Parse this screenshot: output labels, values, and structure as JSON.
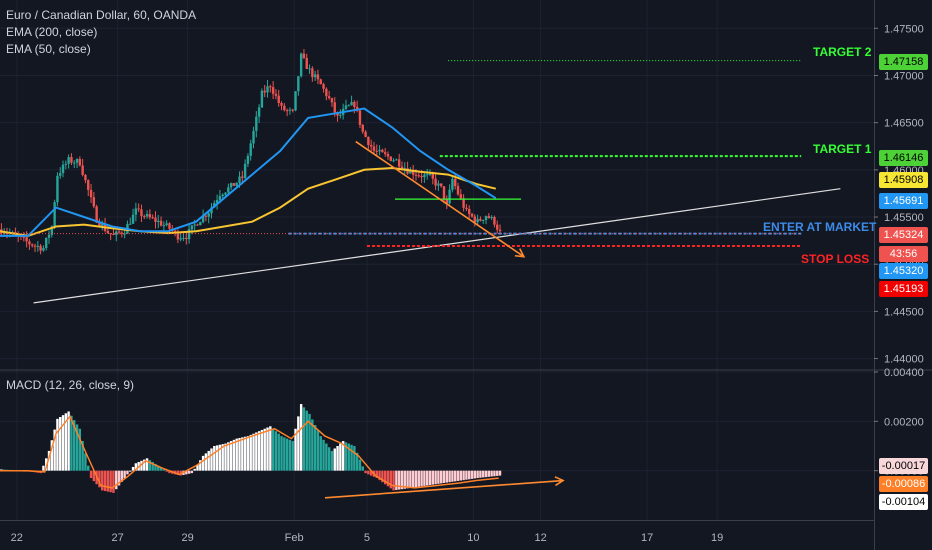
{
  "header": {
    "symbol": "Euro / Canadian Dollar, 60, OANDA",
    "ema200": "EMA (200, close)",
    "ema50": "EMA (50, close)",
    "macd": "MACD (12, 26, close, 9)"
  },
  "annotations": {
    "target2": "TARGET 2",
    "target1": "TARGET 1",
    "enter": "ENTER AT MARKET",
    "stop": "STOP LOSS"
  },
  "price_tags": [
    {
      "label": "1.47158",
      "value": 1.47158,
      "bg": "#4cd137",
      "fg": "#000000"
    },
    {
      "label": "1.46146",
      "value": 1.46146,
      "bg": "#4cd137",
      "fg": "#000000"
    },
    {
      "label": "1.45908",
      "value": 1.45908,
      "bg": "#f7e733",
      "fg": "#000000"
    },
    {
      "label": "1.45691",
      "value": 1.45691,
      "bg": "#2196f3",
      "fg": "#ffffff"
    },
    {
      "label": "1.45324",
      "value": 1.45324,
      "bg": "#ef5350",
      "fg": "#ffffff"
    },
    {
      "label": "43:56",
      "value": 1.4525,
      "bg": "#ef5350",
      "fg": "#ffffff"
    },
    {
      "label": "1.45320",
      "value": 1.4532,
      "bg": "#2196f3",
      "fg": "#ffffff"
    },
    {
      "label": "1.45193",
      "value": 1.45193,
      "bg": "#f20000",
      "fg": "#ffffff"
    }
  ],
  "macd_tags": [
    {
      "label": "-0.00017",
      "value": -0.00017,
      "bg": "#f8d7da",
      "fg": "#000000"
    },
    {
      "label": "-0.00086",
      "value": -0.00086,
      "bg": "#ff7f27",
      "fg": "#ffffff"
    },
    {
      "label": "-0.00104",
      "value": -0.00104,
      "bg": "#ffffff",
      "fg": "#000000"
    }
  ],
  "colors": {
    "background": "#131722",
    "grid": "#1e2230",
    "up": "#26a69a",
    "down": "#ef5350",
    "ema50": "#2196f3",
    "ema200": "#f7c531",
    "macd_line": "#ffffff",
    "signal_line": "#ff7f27",
    "target": "#33ff33",
    "stop": "#ff2222",
    "enter": "#3d8be8",
    "arrow": "#ff8a30"
  },
  "chart_data": {
    "type": "candlestick",
    "main": {
      "ylim": [
        1.439,
        1.478
      ],
      "yticks": [
        1.44,
        1.445,
        1.45,
        1.455,
        1.46,
        1.465,
        1.47,
        1.475
      ],
      "ytick_labels": [
        "1.44000",
        "1.44500",
        "1.45000",
        "1.45500",
        "1.46000",
        "1.46500",
        "1.47000",
        "1.47500"
      ],
      "price_path": [
        [
          0,
          1.4537
        ],
        [
          5,
          1.453
        ],
        [
          10,
          1.4522
        ],
        [
          15,
          1.4517
        ],
        [
          18,
          1.454
        ],
        [
          20,
          1.4595
        ],
        [
          24,
          1.461
        ],
        [
          28,
          1.4608
        ],
        [
          30,
          1.4588
        ],
        [
          34,
          1.4548
        ],
        [
          38,
          1.4534
        ],
        [
          40,
          1.453
        ],
        [
          44,
          1.4536
        ],
        [
          48,
          1.4556
        ],
        [
          52,
          1.455
        ],
        [
          56,
          1.4545
        ],
        [
          60,
          1.4538
        ],
        [
          63,
          1.453
        ],
        [
          66,
          1.453
        ],
        [
          70,
          1.4545
        ],
        [
          74,
          1.4556
        ],
        [
          78,
          1.4575
        ],
        [
          82,
          1.4582
        ],
        [
          86,
          1.4592
        ],
        [
          90,
          1.464
        ],
        [
          93,
          1.468
        ],
        [
          96,
          1.469
        ],
        [
          100,
          1.4665
        ],
        [
          104,
          1.466
        ],
        [
          107,
          1.472
        ],
        [
          110,
          1.4705
        ],
        [
          114,
          1.469
        ],
        [
          117,
          1.4675
        ],
        [
          120,
          1.4655
        ],
        [
          123,
          1.4665
        ],
        [
          126,
          1.467
        ],
        [
          129,
          1.464
        ],
        [
          133,
          1.462
        ],
        [
          137,
          1.4615
        ],
        [
          141,
          1.461
        ],
        [
          145,
          1.46
        ],
        [
          149,
          1.4595
        ],
        [
          153,
          1.4592
        ],
        [
          157,
          1.458
        ],
        [
          159,
          1.4562
        ],
        [
          161,
          1.459
        ],
        [
          163,
          1.4575
        ],
        [
          166,
          1.4555
        ],
        [
          170,
          1.4545
        ],
        [
          173,
          1.4552
        ],
        [
          176,
          1.4545
        ],
        [
          178,
          1.4533
        ]
      ],
      "ema50_path": [
        [
          0,
          1.453
        ],
        [
          10,
          1.453
        ],
        [
          20,
          1.456
        ],
        [
          30,
          1.455
        ],
        [
          40,
          1.454
        ],
        [
          50,
          1.4535
        ],
        [
          60,
          1.4535
        ],
        [
          70,
          1.4545
        ],
        [
          80,
          1.457
        ],
        [
          90,
          1.4595
        ],
        [
          100,
          1.462
        ],
        [
          110,
          1.4655
        ],
        [
          120,
          1.466
        ],
        [
          130,
          1.4665
        ],
        [
          140,
          1.4645
        ],
        [
          150,
          1.462
        ],
        [
          160,
          1.46
        ],
        [
          170,
          1.4583
        ],
        [
          177,
          1.457
        ]
      ],
      "ema200_path": [
        [
          0,
          1.4535
        ],
        [
          10,
          1.453
        ],
        [
          20,
          1.454
        ],
        [
          30,
          1.4542
        ],
        [
          40,
          1.4538
        ],
        [
          50,
          1.4535
        ],
        [
          60,
          1.4533
        ],
        [
          70,
          1.4535
        ],
        [
          80,
          1.454
        ],
        [
          90,
          1.4545
        ],
        [
          100,
          1.456
        ],
        [
          110,
          1.458
        ],
        [
          120,
          1.459
        ],
        [
          130,
          1.46
        ],
        [
          140,
          1.4602
        ],
        [
          150,
          1.4598
        ],
        [
          160,
          1.4595
        ],
        [
          170,
          1.4585
        ],
        [
          177,
          1.458
        ]
      ],
      "lines": [
        {
          "kind": "trendline",
          "from": [
            12,
            1.4459
          ],
          "to": [
            300,
            1.458
          ],
          "color": "#e0e0e0"
        },
        {
          "kind": "target2",
          "from": [
            160,
            1.47158
          ],
          "to": [
            286,
            1.47158
          ],
          "color": "#33ff33"
        },
        {
          "kind": "target1",
          "from": [
            157,
            1.46146
          ],
          "to": [
            286,
            1.46146
          ],
          "color": "#33ff33"
        },
        {
          "kind": "enter",
          "from": [
            103,
            1.45324
          ],
          "to": [
            286,
            1.45324
          ],
          "color": "#3d8be8"
        },
        {
          "kind": "stop",
          "from": [
            131,
            1.45193
          ],
          "to": [
            286,
            1.45193
          ],
          "color": "#ff2222"
        },
        {
          "kind": "current",
          "from": [
            0,
            1.45324
          ],
          "to": [
            286,
            1.45324
          ],
          "color": "#ef5350"
        },
        {
          "kind": "level",
          "from": [
            141,
            1.4569
          ],
          "to": [
            186,
            1.4569
          ],
          "color": "#33ff33"
        },
        {
          "kind": "arrow",
          "from": [
            127,
            1.463
          ],
          "to": [
            187,
            1.4508
          ],
          "color": "#ff8a30"
        }
      ]
    },
    "macd": {
      "ylim": [
        -0.002,
        0.004
      ],
      "yticks": [
        0.0,
        0.002,
        0.004
      ],
      "ytick_labels": [
        "0.00000",
        "0.00200",
        "0.00400"
      ],
      "macd_path": [
        [
          0,
          5e-05
        ],
        [
          8,
          0.0
        ],
        [
          14,
          -0.0001
        ],
        [
          17,
          0.0008
        ],
        [
          20,
          0.0021
        ],
        [
          24,
          0.0024
        ],
        [
          28,
          0.0017
        ],
        [
          32,
          -0.0003
        ],
        [
          36,
          -0.0008
        ],
        [
          40,
          -0.0009
        ],
        [
          44,
          -0.0003
        ],
        [
          48,
          0.0003
        ],
        [
          52,
          0.0005
        ],
        [
          56,
          0.0002
        ],
        [
          60,
          -0.0001
        ],
        [
          64,
          -0.0002
        ],
        [
          68,
          -0.0001
        ],
        [
          72,
          0.0006
        ],
        [
          76,
          0.001
        ],
        [
          80,
          0.0011
        ],
        [
          84,
          0.0013
        ],
        [
          88,
          0.0014
        ],
        [
          92,
          0.0016
        ],
        [
          96,
          0.0018
        ],
        [
          100,
          0.0014
        ],
        [
          104,
          0.0012
        ],
        [
          107,
          0.0027
        ],
        [
          110,
          0.0023
        ],
        [
          114,
          0.0014
        ],
        [
          118,
          0.0008
        ],
        [
          122,
          0.0012
        ],
        [
          126,
          0.001
        ],
        [
          130,
          -0.0001
        ],
        [
          134,
          -0.0003
        ],
        [
          140,
          -0.0008
        ],
        [
          146,
          -0.0007
        ],
        [
          152,
          -0.0006
        ],
        [
          158,
          -0.0005
        ],
        [
          164,
          -0.0004
        ],
        [
          170,
          -0.0003
        ],
        [
          178,
          -0.0002
        ]
      ],
      "signal_path": [
        [
          0,
          0.0
        ],
        [
          10,
          0.0
        ],
        [
          16,
          -5e-05
        ],
        [
          20,
          0.0015
        ],
        [
          25,
          0.0022
        ],
        [
          30,
          0.0009
        ],
        [
          36,
          -0.0006
        ],
        [
          40,
          -0.0007
        ],
        [
          46,
          -0.0002
        ],
        [
          52,
          0.0004
        ],
        [
          58,
          0.0001
        ],
        [
          64,
          -0.00015
        ],
        [
          70,
          0.0002
        ],
        [
          80,
          0.001
        ],
        [
          90,
          0.0014
        ],
        [
          98,
          0.0017
        ],
        [
          104,
          0.0013
        ],
        [
          110,
          0.002
        ],
        [
          116,
          0.0014
        ],
        [
          122,
          0.0011
        ],
        [
          128,
          0.0006
        ],
        [
          134,
          -0.0002
        ],
        [
          140,
          -0.0006
        ],
        [
          148,
          -0.0007
        ],
        [
          156,
          -0.0006
        ],
        [
          164,
          -0.0005
        ],
        [
          170,
          -0.0004
        ],
        [
          178,
          -0.0003
        ]
      ],
      "arrow": {
        "from": [
          116,
          -0.0011
        ],
        "to": [
          201,
          -0.0004
        ],
        "color": "#ff8a30"
      }
    },
    "x_axis": {
      "range": [
        0,
        312
      ],
      "ticks": [
        {
          "x": 6,
          "label": "22"
        },
        {
          "x": 42,
          "label": "27"
        },
        {
          "x": 67,
          "label": "29"
        },
        {
          "x": 105,
          "label": "Feb"
        },
        {
          "x": 131,
          "label": "5"
        },
        {
          "x": 169,
          "label": "10"
        },
        {
          "x": 193,
          "label": "12"
        },
        {
          "x": 231,
          "label": "17"
        },
        {
          "x": 256,
          "label": "19"
        }
      ]
    }
  }
}
